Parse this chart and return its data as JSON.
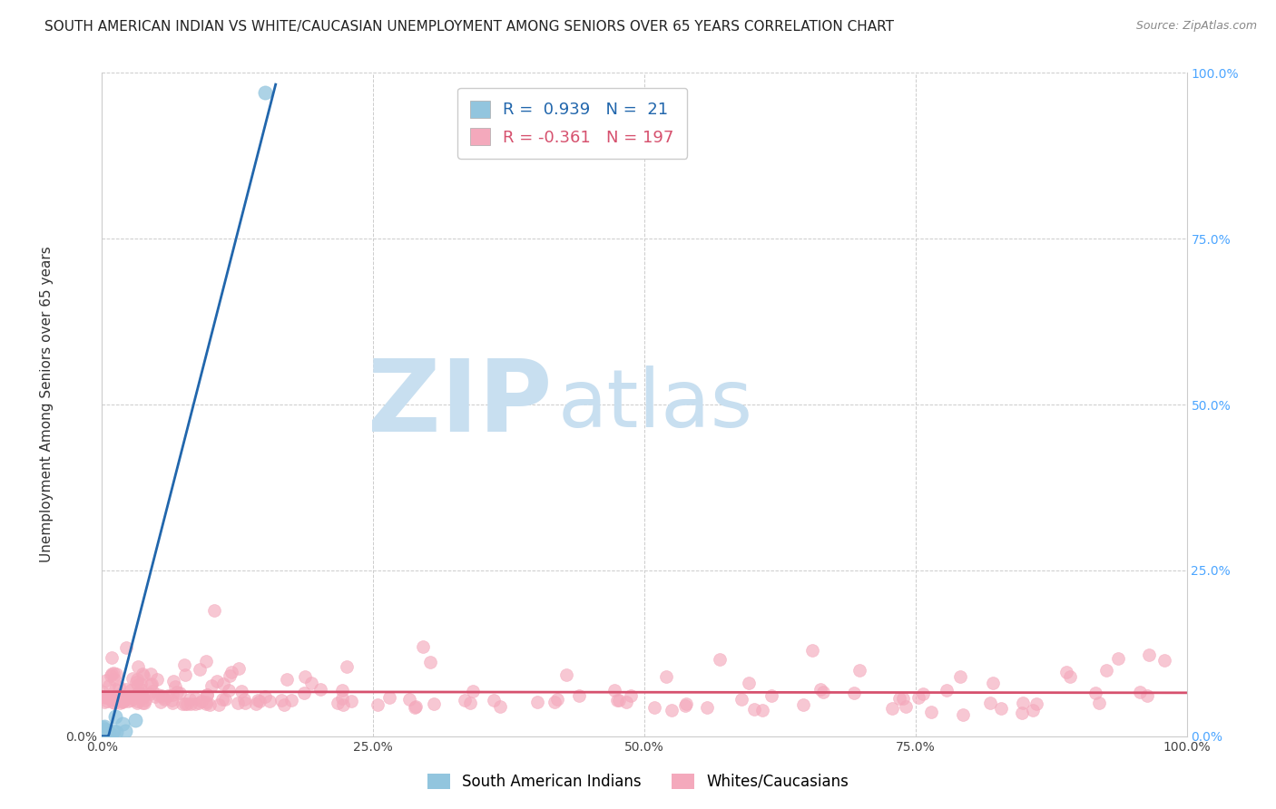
{
  "title": "SOUTH AMERICAN INDIAN VS WHITE/CAUCASIAN UNEMPLOYMENT AMONG SENIORS OVER 65 YEARS CORRELATION CHART",
  "source": "Source: ZipAtlas.com",
  "ylabel": "Unemployment Among Seniors over 65 years",
  "blue_R": 0.939,
  "blue_N": 21,
  "pink_R": -0.361,
  "pink_N": 197,
  "blue_color": "#92c5de",
  "blue_line_color": "#2166ac",
  "pink_color": "#f4a9bc",
  "pink_line_color": "#d6516e",
  "bg_color": "#ffffff",
  "grid_color": "#cccccc",
  "watermark_zip_color": "#c8dff0",
  "watermark_atlas_color": "#c8dff0",
  "legend_label_blue": "South American Indians",
  "legend_label_pink": "Whites/Caucasians",
  "right_axis_color": "#4da6ff",
  "xlim": [
    0,
    100
  ],
  "ylim": [
    0,
    100
  ],
  "xticks": [
    0,
    25,
    50,
    75,
    100
  ],
  "yticks": [
    0,
    25,
    50,
    75,
    100
  ],
  "xtick_labels": [
    "0.0%",
    "25.0%",
    "50.0%",
    "75.0%",
    "100.0%"
  ],
  "left_ytick_labels": [
    "0.0%",
    "",
    "",
    "",
    ""
  ],
  "right_ytick_labels": [
    "0.0%",
    "25.0%",
    "50.0%",
    "75.0%",
    "100.0%"
  ]
}
